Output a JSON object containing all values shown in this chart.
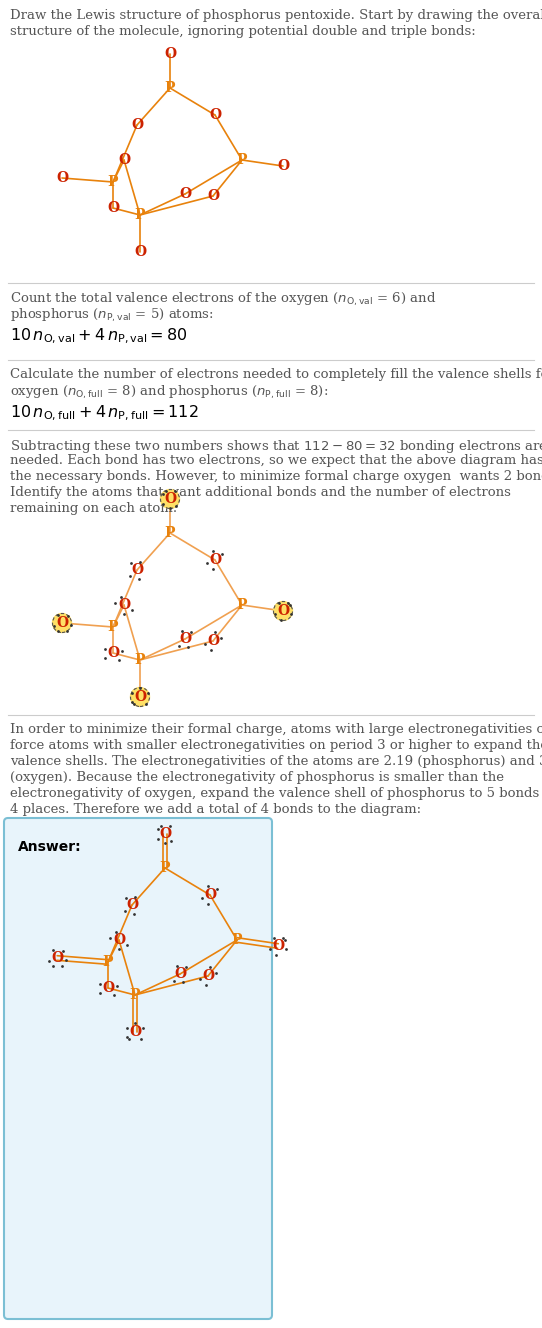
{
  "p_color": "#e8820c",
  "o_color": "#cc2200",
  "bond_color": "#e8820c",
  "bond_color2": "#f0a050",
  "highlight_color": "#ffe066",
  "highlight_border": "#555555",
  "answer_bg": "#e8f4fb",
  "answer_border": "#7bbfd4",
  "text_color": "#555555",
  "divider_color": "#cccccc",
  "background": "#ffffff",
  "lp_color": "#333333"
}
